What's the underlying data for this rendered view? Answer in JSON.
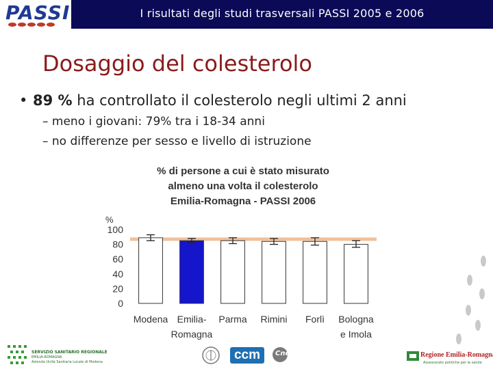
{
  "header": {
    "title": "I risultati degli studi trasversali  PASSI 2005 e 2006",
    "logo_text": "PASSI",
    "bg_color": "#0a0a57"
  },
  "slide": {
    "title": "Dosaggio del colesterolo",
    "bullet_bold": "89 %",
    "bullet_rest": " ha controllato il colesterolo negli ultimi 2 anni",
    "sub_bullets": [
      "– meno i giovani: 79% tra i 18-34 anni",
      "– no differenze per sesso e livello di istruzione"
    ]
  },
  "chart_data": {
    "type": "bar",
    "title_lines": [
      "% di persone a cui è stato misurato",
      "almeno una volta il colesterolo",
      "Emilia-Romagna  -  PASSI 2006"
    ],
    "ylabel": "%",
    "ylim": [
      0,
      100
    ],
    "yticks": [
      0,
      20,
      40,
      60,
      80,
      100
    ],
    "categories": [
      [
        "Modena"
      ],
      [
        "Emilia-",
        "Romagna"
      ],
      [
        "Parma"
      ],
      [
        "Rimini"
      ],
      [
        "Forlì"
      ],
      [
        "Bologna",
        "e Imola"
      ]
    ],
    "values": [
      89,
      85,
      85,
      84,
      84,
      80
    ],
    "error_low": [
      85,
      83,
      81,
      80,
      79,
      76
    ],
    "error_high": [
      93,
      88,
      89,
      88,
      89,
      85
    ],
    "highlight_index": 1,
    "reference_line": 87,
    "colors": {
      "bar": "#ffffff",
      "bar_highlight": "#1515cc",
      "bar_stroke": "#333333",
      "reference": "#f0c09a"
    }
  },
  "footer": {
    "left_logo_lines": [
      "SERVIZIO SANITARIO REGIONALE",
      "EMILIA-ROMAGNA",
      "Azienda Unità Sanitaria Locale di Modena"
    ],
    "ccm_text": "ccm",
    "cnesps_text": "Cnesps",
    "right_logo_title": "Regione Emilia-Romagna",
    "right_logo_sub": "Assessorato politiche per la salute"
  }
}
